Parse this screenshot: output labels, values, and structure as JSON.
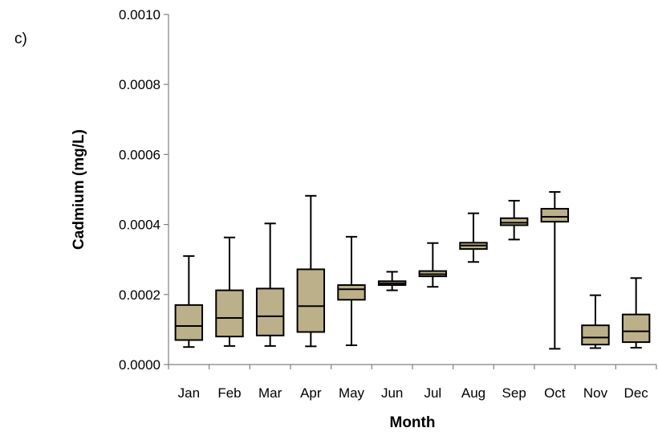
{
  "panel_label": "c)",
  "chart_data": {
    "type": "box",
    "xlabel": "Month",
    "ylabel": "Cadmium (mg/L)",
    "ylim": [
      0,
      0.001
    ],
    "y_ticks": [
      "0.0000",
      "0.0002",
      "0.0004",
      "0.0006",
      "0.0008",
      "0.0010"
    ],
    "y_tick_values": [
      0,
      0.0002,
      0.0004,
      0.0006,
      0.0008,
      0.001
    ],
    "categories": [
      "Jan",
      "Feb",
      "Mar",
      "Apr",
      "May",
      "Jun",
      "Jul",
      "Aug",
      "Sep",
      "Oct",
      "Nov",
      "Dec"
    ],
    "boxes": [
      {
        "min": 5e-05,
        "q1": 7e-05,
        "median": 0.00011,
        "q3": 0.00017,
        "max": 0.00031
      },
      {
        "min": 5.3e-05,
        "q1": 8e-05,
        "median": 0.000133,
        "q3": 0.000212,
        "max": 0.000363
      },
      {
        "min": 5.3e-05,
        "q1": 8.3e-05,
        "median": 0.000138,
        "q3": 0.000217,
        "max": 0.000403
      },
      {
        "min": 5.2e-05,
        "q1": 9.3e-05,
        "median": 0.000167,
        "q3": 0.000272,
        "max": 0.000482
      },
      {
        "min": 5.5e-05,
        "q1": 0.000185,
        "median": 0.000215,
        "q3": 0.000227,
        "max": 0.000365
      },
      {
        "min": 0.000212,
        "q1": 0.000227,
        "median": 0.000232,
        "q3": 0.000238,
        "max": 0.000265
      },
      {
        "min": 0.000222,
        "q1": 0.000252,
        "median": 0.000258,
        "q3": 0.000267,
        "max": 0.000347
      },
      {
        "min": 0.000293,
        "q1": 0.00033,
        "median": 0.00034,
        "q3": 0.000348,
        "max": 0.000432
      },
      {
        "min": 0.000357,
        "q1": 0.000398,
        "median": 0.000405,
        "q3": 0.000418,
        "max": 0.000468
      },
      {
        "min": 4.5e-05,
        "q1": 0.000408,
        "median": 0.000422,
        "q3": 0.000445,
        "max": 0.000493
      },
      {
        "min": 4.7e-05,
        "q1": 5.7e-05,
        "median": 7.7e-05,
        "q3": 0.000112,
        "max": 0.000198
      },
      {
        "min": 4.8e-05,
        "q1": 6.4e-05,
        "median": 9.5e-05,
        "q3": 0.000143,
        "max": 0.000247
      }
    ],
    "box_color": "#bcb08a",
    "grid": false,
    "legend": "none"
  }
}
